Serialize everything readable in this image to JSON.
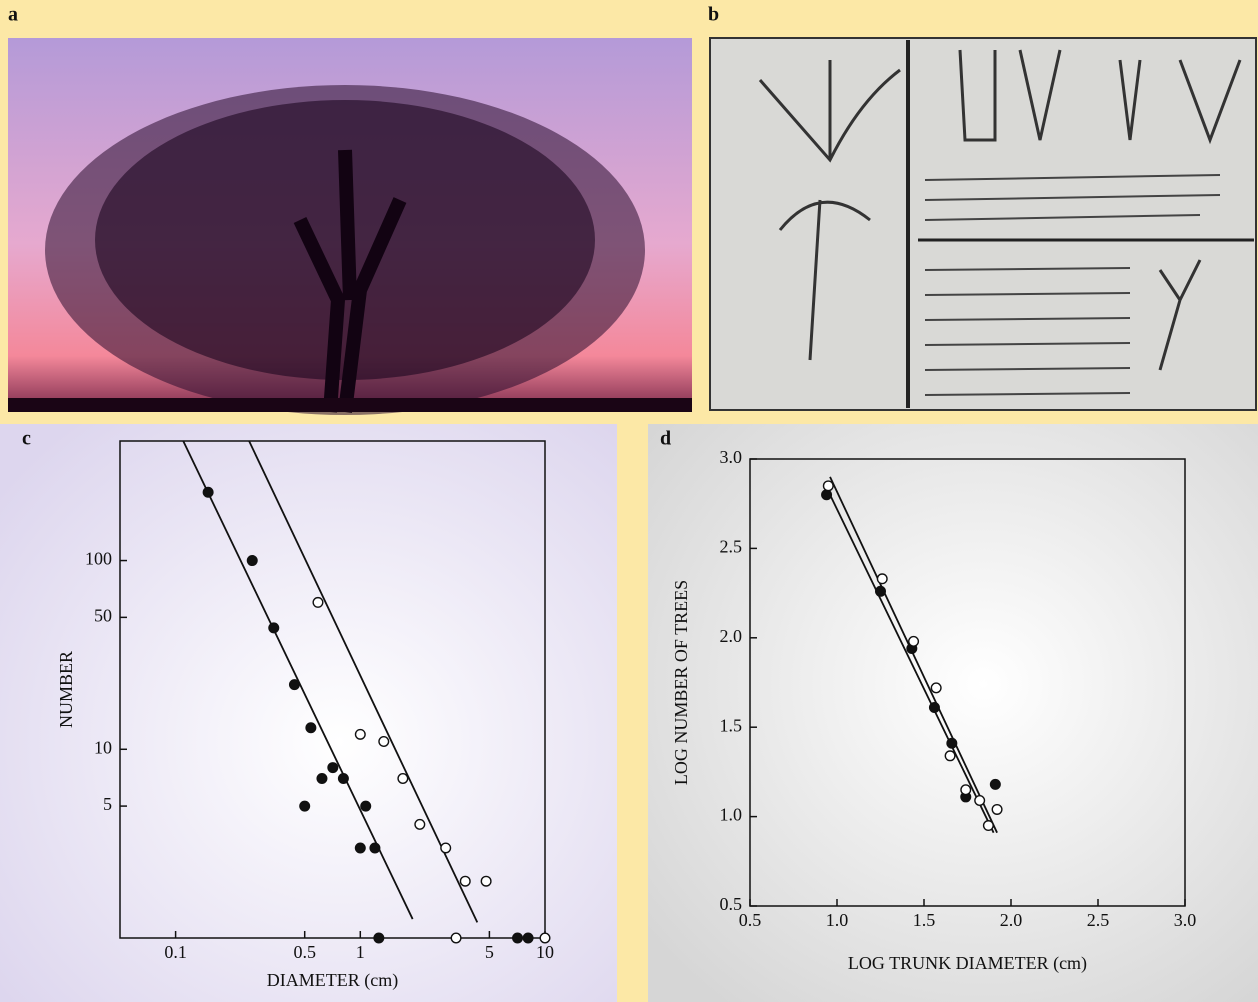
{
  "panel_labels": [
    "a",
    "b",
    "c",
    "d"
  ],
  "chart_data": [
    {
      "type": "scatter",
      "xscale": "log",
      "yscale": "log",
      "xlabel": "DIAMETER (cm)",
      "ylabel": "NUMBER",
      "xlim": [
        0.05,
        10
      ],
      "ylim": [
        1,
        430
      ],
      "xticks": [
        0.1,
        0.5,
        1,
        5,
        10
      ],
      "yticks": [
        5,
        10,
        50,
        100
      ],
      "series": [
        {
          "marker": "filled",
          "color": "#111111",
          "x": [
            0.15,
            0.26,
            0.34,
            0.44,
            0.54,
            0.5,
            0.62,
            0.71,
            0.81,
            1.07,
            1.0,
            1.2,
            1.26,
            7.1,
            8.1
          ],
          "values": [
            230,
            100,
            44,
            22,
            13,
            5,
            7,
            8,
            7,
            5,
            3,
            3,
            1,
            1,
            1
          ]
        },
        {
          "marker": "open",
          "color": "#111111",
          "x": [
            0.59,
            1.0,
            1.34,
            1.7,
            2.1,
            2.9,
            3.7,
            4.8,
            3.3,
            10
          ],
          "values": [
            60,
            12,
            11,
            7,
            4,
            3,
            2,
            2,
            1,
            1
          ]
        }
      ],
      "fit_lines": [
        {
          "x": [
            0.11,
            1.92
          ],
          "values": [
            430,
            1.26
          ]
        },
        {
          "x": [
            0.25,
            4.3
          ],
          "values": [
            430,
            1.21
          ]
        }
      ]
    },
    {
      "type": "scatter",
      "xlabel": "LOG TRUNK DIAMETER (cm)",
      "ylabel": "LOG NUMBER OF TREES",
      "xlim": [
        0.5,
        3.0
      ],
      "ylim": [
        0.5,
        3.0
      ],
      "xticks": [
        0.5,
        {
          "value": 1.0,
          "label": "1.0"
        },
        1.5,
        {
          "value": 2.0,
          "label": "2.0"
        },
        2.5,
        {
          "value": 3.0,
          "label": "3.0"
        }
      ],
      "yticks": [
        0.5,
        {
          "value": 1.0,
          "label": "1.0"
        },
        1.5,
        {
          "value": 2.0,
          "label": "2.0"
        },
        2.5,
        {
          "value": 3.0,
          "label": "3.0"
        }
      ],
      "series": [
        {
          "marker": "filled",
          "color": "#111111",
          "x": [
            0.94,
            1.25,
            1.43,
            1.56,
            1.66,
            1.74,
            1.91
          ],
          "values": [
            2.8,
            2.26,
            1.94,
            1.61,
            1.41,
            1.11,
            1.18
          ]
        },
        {
          "marker": "open",
          "color": "#111111",
          "x": [
            0.95,
            1.26,
            1.44,
            1.57,
            1.65,
            1.74,
            1.82,
            1.87,
            1.92
          ],
          "values": [
            2.85,
            2.33,
            1.98,
            1.72,
            1.34,
            1.15,
            1.09,
            0.95,
            1.04
          ]
        }
      ],
      "fit_lines": [
        {
          "x": [
            0.96,
            1.92
          ],
          "values": [
            2.9,
            0.91
          ]
        },
        {
          "x": [
            0.94,
            1.9
          ],
          "values": [
            2.84,
            0.91
          ]
        }
      ]
    }
  ]
}
